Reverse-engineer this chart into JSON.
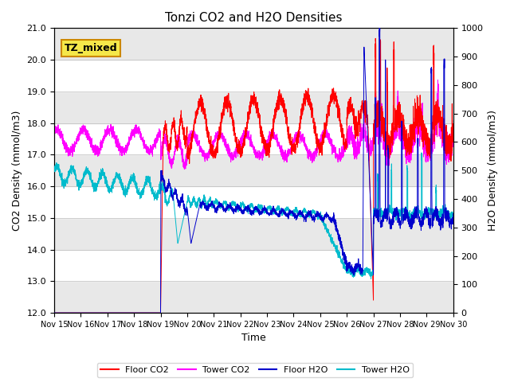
{
  "title": "Tonzi CO2 and H2O Densities",
  "xlabel": "Time",
  "ylabel_left": "CO2 Density (mmol/m3)",
  "ylabel_right": "H2O Density (mmol/m3)",
  "ylim_left": [
    12.0,
    21.0
  ],
  "ylim_right": [
    0,
    1000
  ],
  "yticks_left": [
    12.0,
    13.0,
    14.0,
    15.0,
    16.0,
    17.0,
    18.0,
    19.0,
    20.0,
    21.0
  ],
  "yticks_right": [
    0,
    100,
    200,
    300,
    400,
    500,
    600,
    700,
    800,
    900,
    1000
  ],
  "xtick_labels": [
    "Nov 15",
    "Nov 16",
    "Nov 17",
    "Nov 18",
    "Nov 19",
    "Nov 20",
    "Nov 21",
    "Nov 22",
    "Nov 23",
    "Nov 24",
    "Nov 25",
    "Nov 26",
    "Nov 27",
    "Nov 28",
    "Nov 29",
    "Nov 30"
  ],
  "annotation": "TZ_mixed",
  "annotation_color": "#cc8800",
  "colors": {
    "floor_co2": "#ff0000",
    "tower_co2": "#ff00ff",
    "floor_h2o": "#0000cc",
    "tower_h2o": "#00bbcc"
  },
  "legend_labels": [
    "Floor CO2",
    "Tower CO2",
    "Floor H2O",
    "Tower H2O"
  ],
  "n_points": 4000,
  "seed": 42
}
